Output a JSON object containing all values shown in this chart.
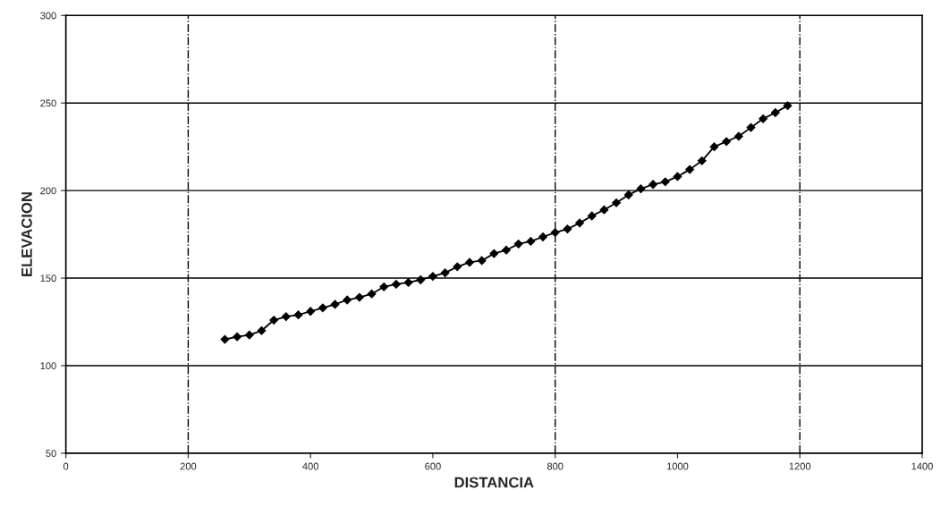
{
  "chart_data": {
    "type": "line",
    "xlabel": "DISTANCIA",
    "ylabel": "ELEVACION",
    "x": [
      260,
      280,
      300,
      320,
      340,
      360,
      380,
      400,
      420,
      440,
      460,
      480,
      500,
      520,
      540,
      560,
      580,
      600,
      620,
      640,
      660,
      680,
      700,
      720,
      740,
      760,
      780,
      800,
      820,
      840,
      860,
      880,
      900,
      920,
      940,
      960,
      980,
      1000,
      1020,
      1040,
      1060,
      1080,
      1100,
      1120,
      1140,
      1160,
      1180
    ],
    "series": [
      {
        "color": "#000000",
        "values": [
          115,
          116.5,
          117.5,
          120,
          126,
          128,
          129,
          131,
          133,
          135,
          137.5,
          139,
          141,
          145,
          146.5,
          147.5,
          149,
          151,
          153,
          156.5,
          159,
          160,
          164,
          166,
          169.5,
          171,
          173.5,
          176,
          178,
          181.5,
          185.5,
          189,
          193,
          197.5,
          201,
          203.5,
          205,
          208,
          212,
          217,
          225,
          228,
          231,
          236,
          241,
          244.5,
          248.5
        ]
      }
    ],
    "xlim": [
      0,
      1400
    ],
    "xticks": [
      0,
      200,
      400,
      600,
      800,
      1000,
      1200,
      1400
    ],
    "ylim": [
      50,
      300
    ],
    "yticks": [
      50,
      100,
      150,
      200,
      250,
      300
    ],
    "grid": "y",
    "marker": "diamond",
    "line_style": "solid",
    "ref_lines": [
      {
        "axis": "x",
        "value": 200,
        "line_style": "dashed"
      },
      {
        "axis": "x",
        "value": 800,
        "line_style": "dashed"
      },
      {
        "axis": "x",
        "value": 1200,
        "line_style": "dashed"
      }
    ]
  }
}
